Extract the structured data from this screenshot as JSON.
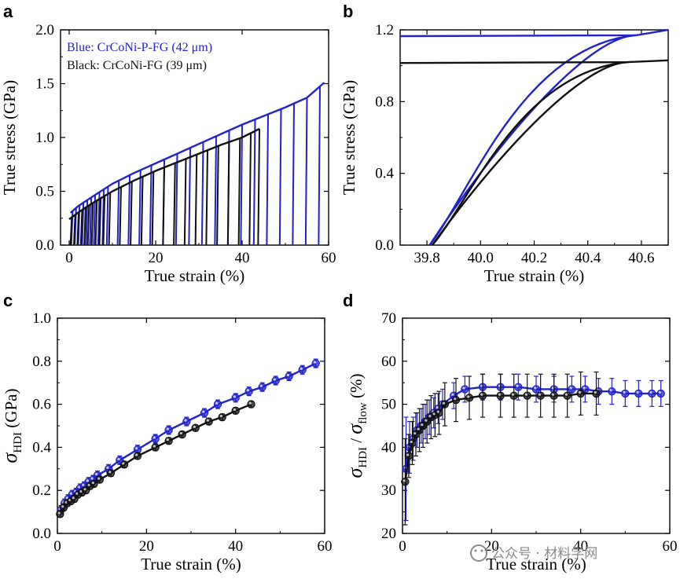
{
  "chart_data": [
    {
      "panel": "a",
      "type": "line",
      "xlabel": "True strain (%)",
      "ylabel": "True stress (GPa)",
      "xlim": [
        -2,
        60
      ],
      "ylim": [
        0,
        2.0
      ],
      "xticks": [
        0,
        20,
        40,
        60
      ],
      "yticks": [
        0.0,
        0.5,
        1.0,
        1.5,
        2.0
      ],
      "legend": [
        "Blue: CrCoNi-P-FG (42 μm)",
        "Black: CrCoNi-FG (39 μm)"
      ],
      "series": [
        {
          "name": "Blue: CrCoNi-P-FG (42 μm)",
          "color": "#2222cc",
          "envelope": [
            [
              0.3,
              0.3
            ],
            [
              2,
              0.36
            ],
            [
              5,
              0.44
            ],
            [
              10,
              0.57
            ],
            [
              15,
              0.67
            ],
            [
              20,
              0.76
            ],
            [
              25,
              0.85
            ],
            [
              30,
              0.94
            ],
            [
              35,
              1.03
            ],
            [
              40,
              1.12
            ],
            [
              45,
              1.2
            ],
            [
              50,
              1.28
            ],
            [
              55,
              1.37
            ],
            [
              59,
              1.51
            ]
          ],
          "unload_strains": [
            0.8,
            1.6,
            2.4,
            3.3,
            4.2,
            5.1,
            6.0,
            7.0,
            8.0,
            9.0,
            11.5,
            14,
            16.5,
            19,
            22,
            25,
            28,
            31,
            34,
            37,
            40,
            43,
            46,
            49,
            52,
            55,
            58
          ]
        },
        {
          "name": "Black: CrCoNi-FG (39 μm)",
          "color": "#111111",
          "envelope": [
            [
              0,
              0.24
            ],
            [
              2,
              0.3
            ],
            [
              5,
              0.38
            ],
            [
              10,
              0.5
            ],
            [
              15,
              0.6
            ],
            [
              20,
              0.69
            ],
            [
              25,
              0.77
            ],
            [
              30,
              0.85
            ],
            [
              35,
              0.93
            ],
            [
              40,
              1.0
            ],
            [
              44,
              1.08
            ]
          ],
          "unload_strains": [
            0.6,
            1.4,
            2.2,
            3.0,
            3.8,
            4.6,
            5.5,
            6.4,
            7.3,
            8.2,
            9.5,
            12,
            14.5,
            17,
            19.5,
            22,
            24.5,
            27,
            29.5,
            32,
            34.5,
            37,
            39.5,
            42,
            44
          ]
        }
      ]
    },
    {
      "panel": "b",
      "type": "line",
      "xlabel": "True strain (%)",
      "ylabel": "True stress (GPa)",
      "xlim": [
        39.7,
        40.7
      ],
      "ylim": [
        0,
        1.2
      ],
      "xticks": [
        39.8,
        40.0,
        40.2,
        40.4,
        40.6
      ],
      "yticks": [
        0.0,
        0.4,
        0.8,
        1.2
      ],
      "series": [
        {
          "name": "",
          "color": "#2222cc",
          "loop_min_strain": 39.81,
          "loop_max_strain": 40.58,
          "loop_max_stress": 1.17,
          "plateau": [
            [
              39.7,
              1.165
            ],
            [
              40.58,
              1.17
            ],
            [
              40.7,
              1.2
            ]
          ]
        },
        {
          "name": "",
          "color": "#111111",
          "loop_min_strain": 39.82,
          "loop_max_strain": 40.55,
          "loop_max_stress": 1.02,
          "plateau": [
            [
              39.7,
              1.015
            ],
            [
              40.55,
              1.02
            ],
            [
              40.7,
              1.03
            ]
          ]
        }
      ]
    },
    {
      "panel": "c",
      "type": "scatter",
      "xlabel": "True strain (%)",
      "ylabel": "σ_HDI (GPa)",
      "xlim": [
        0,
        60
      ],
      "ylim": [
        0,
        1.0
      ],
      "xticks": [
        0,
        20,
        40,
        60
      ],
      "yticks": [
        0.0,
        0.2,
        0.4,
        0.6,
        0.8,
        1.0
      ],
      "series": [
        {
          "name": "",
          "color": "#2222cc",
          "x": [
            0.8,
            1.6,
            2.4,
            3.3,
            4.2,
            5.1,
            6.0,
            7.0,
            8.0,
            9.0,
            11.5,
            14,
            18,
            22,
            25,
            29,
            33,
            36,
            40,
            43,
            46,
            49,
            52,
            55,
            58
          ],
          "y": [
            0.11,
            0.14,
            0.16,
            0.18,
            0.19,
            0.21,
            0.22,
            0.24,
            0.25,
            0.27,
            0.3,
            0.34,
            0.39,
            0.44,
            0.48,
            0.52,
            0.56,
            0.6,
            0.63,
            0.66,
            0.68,
            0.71,
            0.73,
            0.76,
            0.79
          ],
          "err": 0.02
        },
        {
          "name": "",
          "color": "#111111",
          "x": [
            0.6,
            1.4,
            2.2,
            3.0,
            3.8,
            4.6,
            5.5,
            6.4,
            7.3,
            8.2,
            9.5,
            12,
            15,
            18,
            22,
            25,
            28,
            31,
            34,
            37,
            40,
            43.5
          ],
          "y": [
            0.09,
            0.12,
            0.14,
            0.15,
            0.16,
            0.18,
            0.19,
            0.2,
            0.22,
            0.23,
            0.25,
            0.28,
            0.32,
            0.36,
            0.4,
            0.43,
            0.46,
            0.49,
            0.52,
            0.54,
            0.57,
            0.6
          ],
          "err": 0.015
        }
      ]
    },
    {
      "panel": "d",
      "type": "scatter",
      "xlabel": "True strain (%)",
      "ylabel": "σ_HDI / σ_flow (%)",
      "xlim": [
        0,
        60
      ],
      "ylim": [
        20,
        70
      ],
      "xticks": [
        0,
        20,
        40,
        60
      ],
      "yticks": [
        20,
        30,
        40,
        50,
        60,
        70
      ],
      "series": [
        {
          "name": "",
          "color": "#2222cc",
          "x": [
            0.8,
            1.6,
            2.4,
            3.3,
            4.2,
            5.1,
            6.0,
            7.0,
            8.0,
            9.0,
            11.5,
            14,
            18,
            22,
            26,
            30,
            34,
            38,
            41,
            44,
            47,
            50,
            53,
            56,
            58
          ],
          "y": [
            35,
            40,
            42,
            44,
            45,
            46,
            47,
            48,
            49,
            50,
            52,
            53.5,
            54,
            54,
            54,
            53.5,
            53.5,
            53.5,
            53.5,
            53,
            53,
            52.5,
            52.5,
            52.5,
            52.5
          ],
          "err": [
            12,
            6,
            5,
            4,
            4,
            4,
            4,
            3.5,
            3.5,
            3.5,
            3,
            3,
            3,
            3,
            3,
            3,
            3,
            3,
            3,
            3,
            3,
            3,
            3,
            3,
            3
          ]
        },
        {
          "name": "",
          "color": "#111111",
          "x": [
            0.6,
            1.4,
            2.2,
            3.0,
            3.8,
            4.6,
            5.5,
            6.4,
            7.3,
            8.2,
            9.5,
            12,
            15,
            18,
            22,
            25,
            28,
            31,
            34,
            37,
            40,
            43.5
          ],
          "y": [
            32,
            38,
            41,
            43,
            44,
            45,
            46,
            47,
            47.5,
            48,
            50,
            51,
            51.5,
            52,
            52,
            52,
            52,
            52,
            52,
            52,
            52.5,
            52.5
          ],
          "err": [
            10,
            5,
            5,
            5,
            5,
            5,
            5,
            5,
            5,
            5,
            5,
            5,
            5,
            5,
            5,
            5,
            5,
            5,
            5,
            5,
            5,
            5
          ]
        }
      ]
    }
  ],
  "panels": {
    "a": {
      "letter": "a"
    },
    "b": {
      "letter": "b"
    },
    "c": {
      "letter": "c"
    },
    "d": {
      "letter": "d"
    }
  },
  "watermark": "公众号 · 材料学网"
}
